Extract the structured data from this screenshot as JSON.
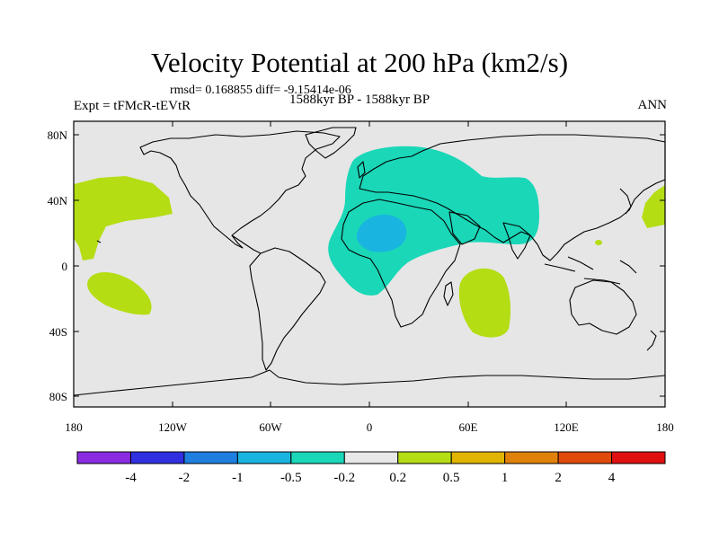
{
  "title": "Velocity Potential at 200 hPa (km2/s)",
  "stats": "rmsd= 0.168855 diff= -9.15414e-06",
  "experiment": "Expt = tFMcR-tEVtR",
  "period": "1588kyr BP - 1588kyr BP",
  "season": "ANN",
  "axes": {
    "lat_ticks": [
      "80N",
      "40N",
      "0",
      "40S",
      "80S"
    ],
    "lon_ticks": [
      "180",
      "120W",
      "60W",
      "0",
      "60E",
      "120E",
      "180"
    ]
  },
  "colorbar": {
    "colors": [
      "#8a2be2",
      "#3030e0",
      "#1e7fe0",
      "#19b4e0",
      "#1ad7b8",
      "#e8e8e8",
      "#b4dd14",
      "#e0b400",
      "#e0820a",
      "#e04a0a",
      "#e01010"
    ],
    "labels": [
      "-4",
      "-2",
      "-1",
      "-0.5",
      "-0.2",
      "0.2",
      "0.5",
      "1",
      "2",
      "4"
    ]
  },
  "colors": {
    "ocean_background": "#e6e6e6",
    "positive_anomaly": "#b4dd14",
    "negative_anomaly": "#1ad7b8",
    "strong_negative_anomaly": "#19b4e0"
  }
}
